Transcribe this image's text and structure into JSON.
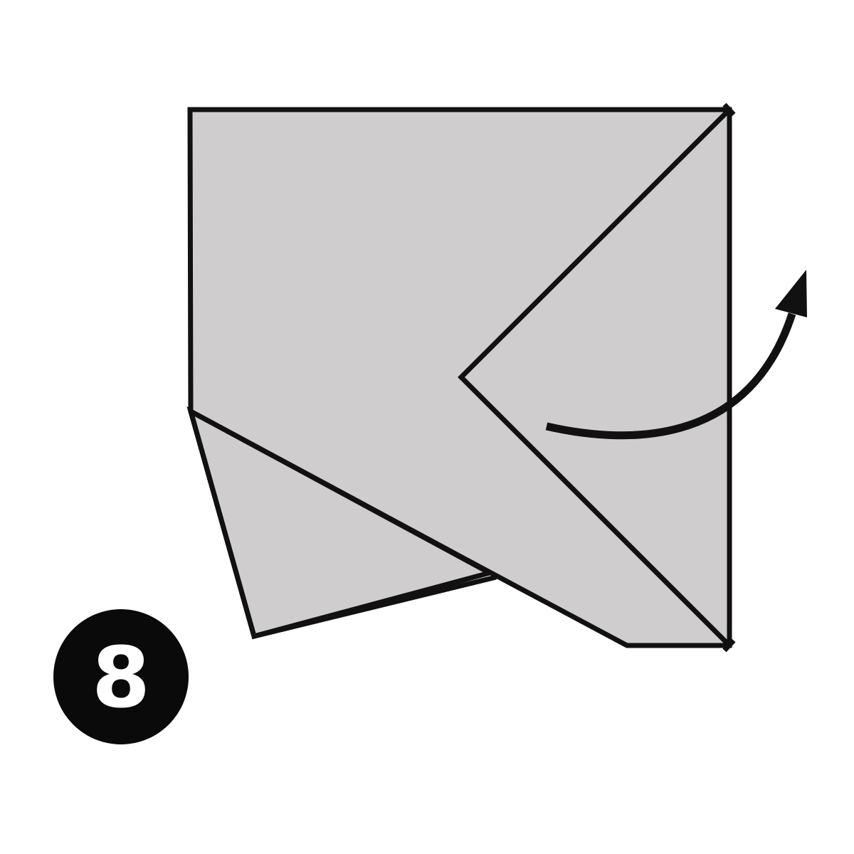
{
  "step": {
    "number": "8"
  },
  "colors": {
    "paper_fill": "#cfcdcd",
    "line_color": "#111111",
    "badge_color": "#0a0a0a",
    "badge_text_color": "#ffffff"
  },
  "icons": {
    "fold_arrow": "curved-arrow-icon"
  }
}
